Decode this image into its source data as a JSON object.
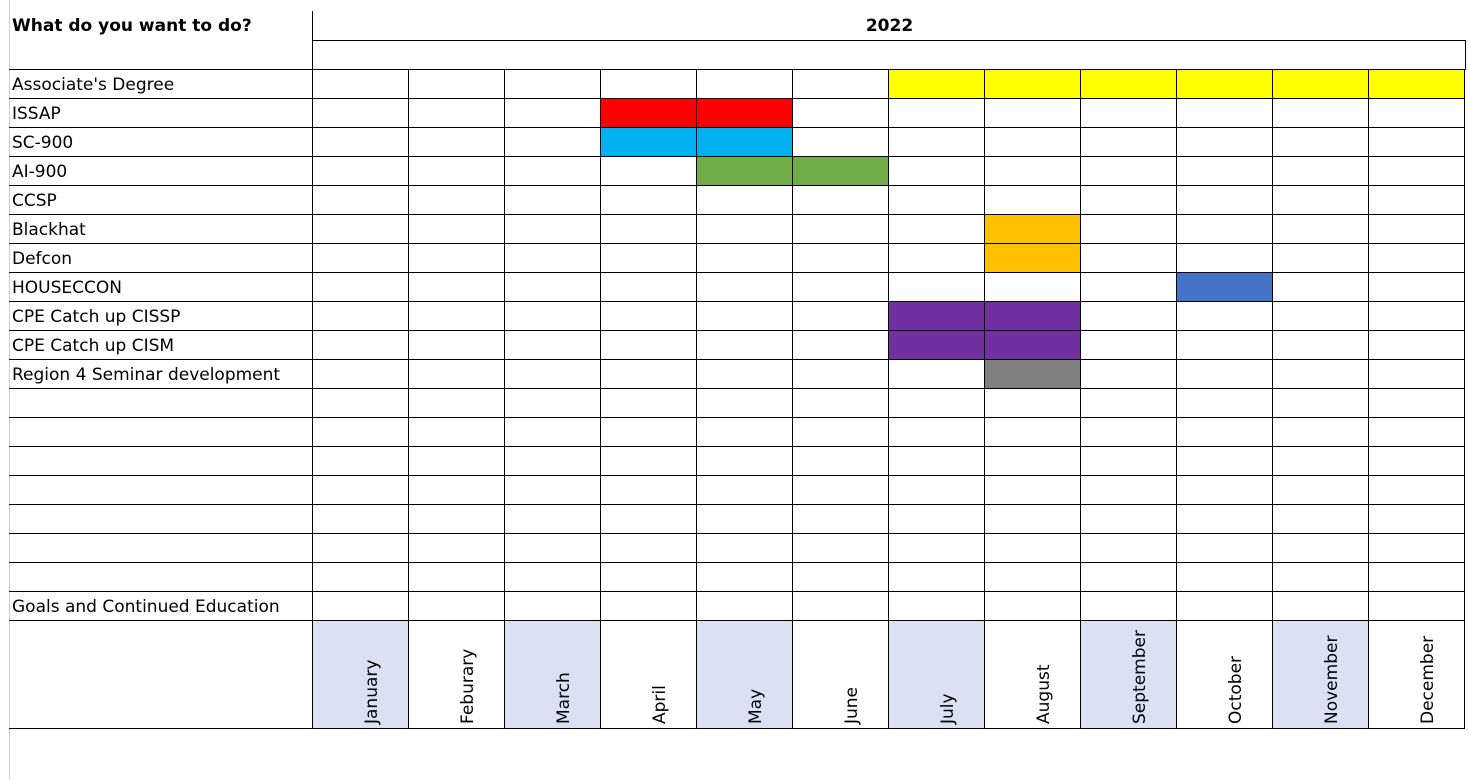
{
  "header": {
    "question": "What do you want to do?",
    "year": "2022"
  },
  "months": [
    "January",
    "Feburary",
    "March",
    "April",
    "May",
    "June",
    "July",
    "August",
    "September",
    "October",
    "November",
    "December"
  ],
  "rows": [
    {
      "label": "Associate's Degree",
      "fill": {
        "from": 6,
        "to": 11,
        "color": "#ffff00"
      }
    },
    {
      "label": "ISSAP",
      "fill": {
        "from": 3,
        "to": 4,
        "color": "#ff0000"
      }
    },
    {
      "label": "SC-900",
      "fill": {
        "from": 3,
        "to": 4,
        "color": "#00b0f0"
      }
    },
    {
      "label": "AI-900",
      "fill": {
        "from": 4,
        "to": 5,
        "color": "#70ad47"
      }
    },
    {
      "label": "CCSP",
      "fill": null
    },
    {
      "label": "Blackhat",
      "fill": {
        "from": 7,
        "to": 7,
        "color": "#ffc000"
      }
    },
    {
      "label": "Defcon",
      "fill": {
        "from": 7,
        "to": 7,
        "color": "#ffc000"
      }
    },
    {
      "label": "HOUSECCON",
      "fill": {
        "from": 9,
        "to": 9,
        "color": "#4472c4"
      }
    },
    {
      "label": "CPE Catch up CISSP",
      "fill": {
        "from": 6,
        "to": 7,
        "color": "#7030a0"
      }
    },
    {
      "label": "CPE Catch up CISM",
      "fill": {
        "from": 6,
        "to": 7,
        "color": "#7030a0"
      }
    },
    {
      "label": "Region 4 Seminar development",
      "fill": {
        "from": 7,
        "to": 7,
        "color": "#808080"
      }
    },
    {
      "label": "",
      "fill": null
    },
    {
      "label": "",
      "fill": null
    },
    {
      "label": "",
      "fill": null
    },
    {
      "label": "",
      "fill": null
    },
    {
      "label": "",
      "fill": null
    },
    {
      "label": "",
      "fill": null
    },
    {
      "label": "",
      "fill": null
    },
    {
      "label": "Goals and Continued Education",
      "fill": null
    }
  ],
  "colors": {
    "month_shade": "#d9e1f2",
    "grid": "#000000"
  }
}
